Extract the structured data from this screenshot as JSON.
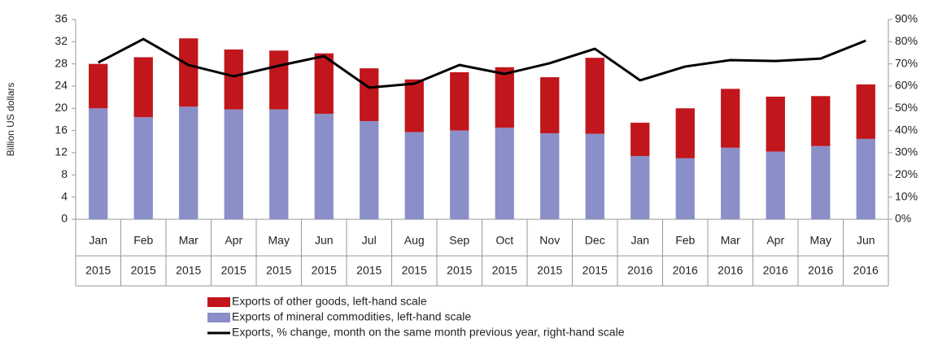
{
  "chart_data": {
    "type": "bar",
    "stacked": true,
    "y_label": "Billion US dollars",
    "categories": [
      "Jan",
      "Feb",
      "Mar",
      "Apr",
      "May",
      "Jun",
      "Jul",
      "Aug",
      "Sep",
      "Oct",
      "Nov",
      "Dec",
      "Jan",
      "Feb",
      "Mar",
      "Apr",
      "May",
      "Jun"
    ],
    "category_years": [
      "2015",
      "2015",
      "2015",
      "2015",
      "2015",
      "2015",
      "2015",
      "2015",
      "2015",
      "2015",
      "2015",
      "2015",
      "2016",
      "2016",
      "2016",
      "2016",
      "2016",
      "2016"
    ],
    "series": [
      {
        "name": "Exports of mineral commodities, left-hand scale",
        "color": "#8a8fc8",
        "type": "bar",
        "values": [
          20.0,
          18.4,
          20.3,
          19.8,
          19.8,
          19.0,
          17.7,
          15.7,
          16.0,
          16.5,
          15.5,
          15.4,
          11.4,
          11.0,
          12.9,
          12.2,
          13.2,
          14.5
        ]
      },
      {
        "name": "Exports of other goods, left-hand scale",
        "color": "#c0161c",
        "type": "bar",
        "values": [
          8.0,
          10.8,
          12.3,
          10.8,
          10.6,
          10.9,
          9.5,
          9.5,
          10.5,
          10.9,
          10.1,
          13.7,
          6.0,
          9.0,
          10.6,
          9.9,
          9.0,
          9.8
        ]
      },
      {
        "name": "Exports, % change, month on the same month previous year, right-hand scale",
        "color": "#000000",
        "type": "line",
        "axis": "y2",
        "values": [
          70.6,
          81.2,
          69.5,
          64.4,
          69.2,
          73.5,
          59.3,
          61.1,
          69.5,
          65.5,
          70.3,
          76.8,
          62.6,
          68.8,
          71.7,
          71.3,
          72.4,
          80.5
        ]
      }
    ],
    "legend_order": [
      1,
      0,
      2
    ],
    "ylim": [
      0,
      36
    ],
    "yticks": [
      0,
      4,
      8,
      12,
      16,
      20,
      24,
      28,
      32,
      36
    ],
    "y2lim": [
      0,
      90
    ],
    "y2ticks": [
      {
        "value": 0,
        "label": "0%"
      },
      {
        "value": 10,
        "label": "10%"
      },
      {
        "value": 20,
        "label": "20%"
      },
      {
        "value": 30,
        "label": "30%"
      },
      {
        "value": 40,
        "label": "40%"
      },
      {
        "value": 50,
        "label": "50%"
      },
      {
        "value": 60,
        "label": "60%"
      },
      {
        "value": 70,
        "label": "70%"
      },
      {
        "value": 80,
        "label": "80%"
      },
      {
        "value": 90,
        "label": "90%"
      }
    ],
    "grid": false
  }
}
